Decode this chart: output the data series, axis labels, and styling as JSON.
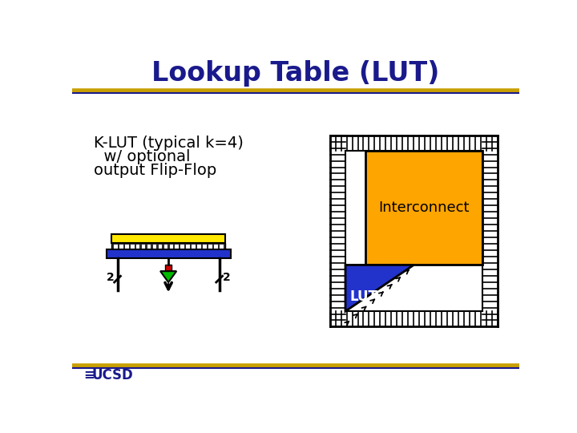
{
  "title": "Lookup Table (LUT)",
  "title_color": "#1a1a8c",
  "title_fontsize": 24,
  "subtitle_line1": "K-LUT (typical k=4)",
  "subtitle_line2": "  w/ optional",
  "subtitle_line3": "output Flip-Flop",
  "subtitle_fontsize": 14,
  "bg_color": "#ffffff",
  "gold_color": "#c8a000",
  "navy_color": "#1a1a8c",
  "orange_color": "#FFA500",
  "blue_color": "#2233cc",
  "yellow_color": "#FFE800",
  "red_color": "#cc0000",
  "green_color": "#00bb00",
  "black_color": "#000000",
  "white_color": "#ffffff",
  "ucsd_color": "#1a1a8c"
}
